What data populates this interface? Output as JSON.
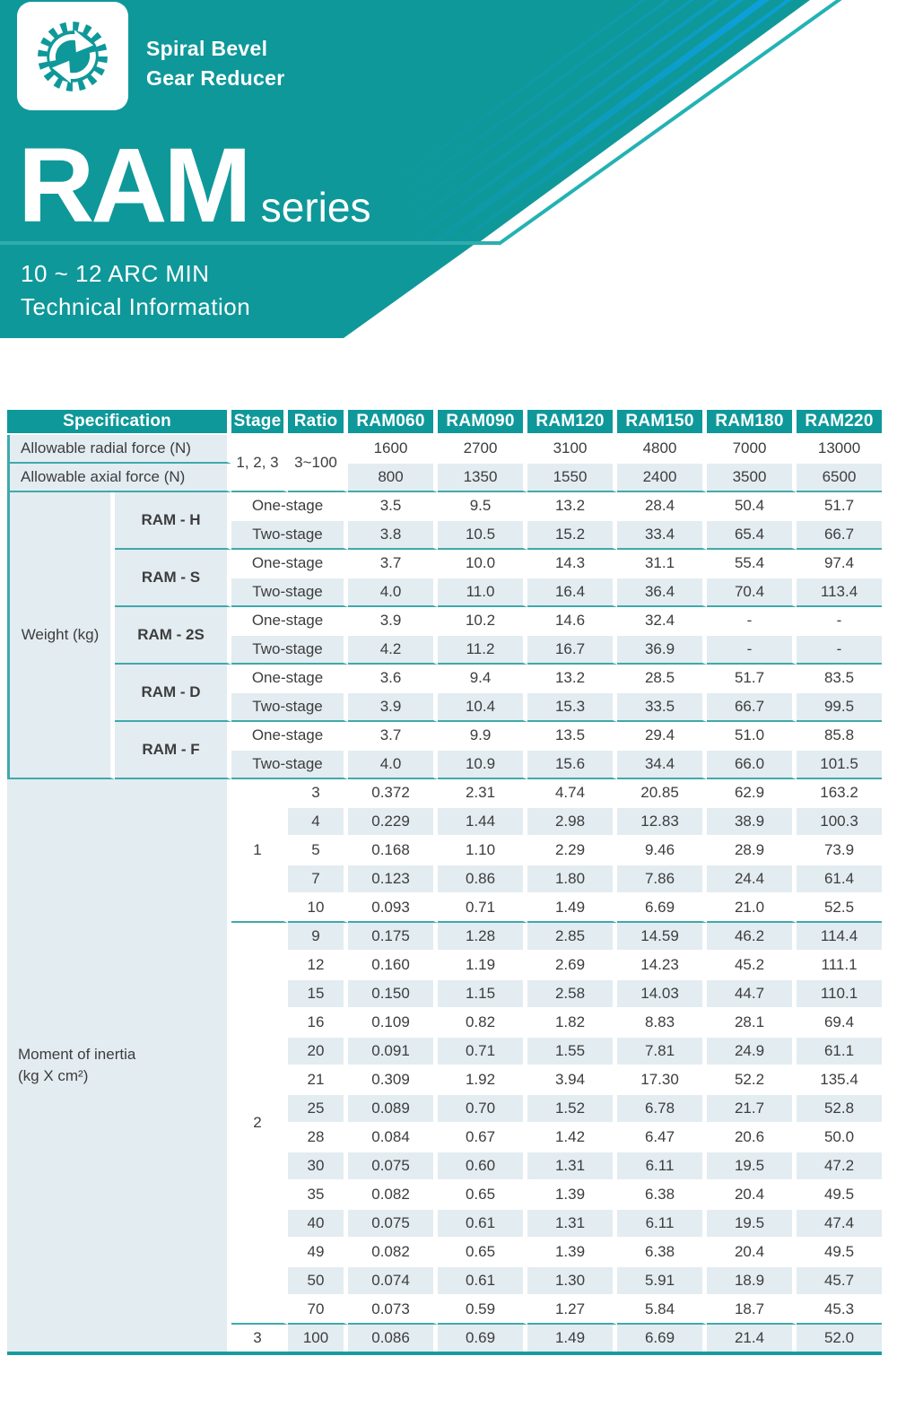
{
  "logo": {
    "icon": "gear-sync-icon",
    "title_line1": "Spiral Bevel",
    "title_line2": "Gear Reducer"
  },
  "banner": {
    "series_name": "RAM",
    "series_suffix": "series",
    "subtitle_line1": "10 ~ 12 ARC MIN",
    "subtitle_line2": "Technical Information"
  },
  "colors": {
    "teal": "#0F989A",
    "divider_teal": "#2EACAE",
    "outline_teal": "#23B2B4",
    "stripe_blue": "#0BA0DC",
    "row_shade": "#E3ECF1",
    "separator_teal": "#3FA9AB",
    "body_text": "#3D3D3D"
  },
  "table": {
    "columns": [
      "Specification",
      "Stage",
      "Ratio",
      "RAM060",
      "RAM090",
      "RAM120",
      "RAM150",
      "RAM180",
      "RAM220"
    ],
    "force_stage": "1, 2, 3",
    "force_ratio": "3~100",
    "force_rows": [
      {
        "label": "Allowable radial force (N)",
        "values": [
          "1600",
          "2700",
          "3100",
          "4800",
          "7000",
          "13000"
        ]
      },
      {
        "label": "Allowable axial force (N)",
        "values": [
          "800",
          "1350",
          "1550",
          "2400",
          "3500",
          "6500"
        ]
      }
    ],
    "weight": {
      "label": "Weight (kg)",
      "stage_labels": {
        "one": "One-stage",
        "two": "Two-stage"
      },
      "models": [
        {
          "name": "RAM - H",
          "one_stage": [
            "3.5",
            "9.5",
            "13.2",
            "28.4",
            "50.4",
            "51.7"
          ],
          "two_stage": [
            "3.8",
            "10.5",
            "15.2",
            "33.4",
            "65.4",
            "66.7"
          ]
        },
        {
          "name": "RAM - S",
          "one_stage": [
            "3.7",
            "10.0",
            "14.3",
            "31.1",
            "55.4",
            "97.4"
          ],
          "two_stage": [
            "4.0",
            "11.0",
            "16.4",
            "36.4",
            "70.4",
            "113.4"
          ]
        },
        {
          "name": "RAM - 2S",
          "one_stage": [
            "3.9",
            "10.2",
            "14.6",
            "32.4",
            "-",
            "-"
          ],
          "two_stage": [
            "4.2",
            "11.2",
            "16.7",
            "36.9",
            "-",
            "-"
          ]
        },
        {
          "name": "RAM - D",
          "one_stage": [
            "3.6",
            "9.4",
            "13.2",
            "28.5",
            "51.7",
            "83.5"
          ],
          "two_stage": [
            "3.9",
            "10.4",
            "15.3",
            "33.5",
            "66.7",
            "99.5"
          ]
        },
        {
          "name": "RAM - F",
          "one_stage": [
            "3.7",
            "9.9",
            "13.5",
            "29.4",
            "51.0",
            "85.8"
          ],
          "two_stage": [
            "4.0",
            "10.9",
            "15.6",
            "34.4",
            "66.0",
            "101.5"
          ]
        }
      ]
    },
    "inertia": {
      "label_line1": "Moment of inertia",
      "label_line2": "(kg X cm²)",
      "stages": [
        {
          "stage": "1",
          "rows": [
            [
              "3",
              "0.372",
              "2.31",
              "4.74",
              "20.85",
              "62.9",
              "163.2"
            ],
            [
              "4",
              "0.229",
              "1.44",
              "2.98",
              "12.83",
              "38.9",
              "100.3"
            ],
            [
              "5",
              "0.168",
              "1.10",
              "2.29",
              "9.46",
              "28.9",
              "73.9"
            ],
            [
              "7",
              "0.123",
              "0.86",
              "1.80",
              "7.86",
              "24.4",
              "61.4"
            ],
            [
              "10",
              "0.093",
              "0.71",
              "1.49",
              "6.69",
              "21.0",
              "52.5"
            ]
          ]
        },
        {
          "stage": "2",
          "rows": [
            [
              "9",
              "0.175",
              "1.28",
              "2.85",
              "14.59",
              "46.2",
              "114.4"
            ],
            [
              "12",
              "0.160",
              "1.19",
              "2.69",
              "14.23",
              "45.2",
              "111.1"
            ],
            [
              "15",
              "0.150",
              "1.15",
              "2.58",
              "14.03",
              "44.7",
              "110.1"
            ],
            [
              "16",
              "0.109",
              "0.82",
              "1.82",
              "8.83",
              "28.1",
              "69.4"
            ],
            [
              "20",
              "0.091",
              "0.71",
              "1.55",
              "7.81",
              "24.9",
              "61.1"
            ],
            [
              "21",
              "0.309",
              "1.92",
              "3.94",
              "17.30",
              "52.2",
              "135.4"
            ],
            [
              "25",
              "0.089",
              "0.70",
              "1.52",
              "6.78",
              "21.7",
              "52.8"
            ],
            [
              "28",
              "0.084",
              "0.67",
              "1.42",
              "6.47",
              "20.6",
              "50.0"
            ],
            [
              "30",
              "0.075",
              "0.60",
              "1.31",
              "6.11",
              "19.5",
              "47.2"
            ],
            [
              "35",
              "0.082",
              "0.65",
              "1.39",
              "6.38",
              "20.4",
              "49.5"
            ],
            [
              "40",
              "0.075",
              "0.61",
              "1.31",
              "6.11",
              "19.5",
              "47.4"
            ],
            [
              "49",
              "0.082",
              "0.65",
              "1.39",
              "6.38",
              "20.4",
              "49.5"
            ],
            [
              "50",
              "0.074",
              "0.61",
              "1.30",
              "5.91",
              "18.9",
              "45.7"
            ],
            [
              "70",
              "0.073",
              "0.59",
              "1.27",
              "5.84",
              "18.7",
              "45.3"
            ]
          ]
        },
        {
          "stage": "3",
          "rows": [
            [
              "100",
              "0.086",
              "0.69",
              "1.49",
              "6.69",
              "21.4",
              "52.0"
            ]
          ]
        }
      ]
    }
  }
}
